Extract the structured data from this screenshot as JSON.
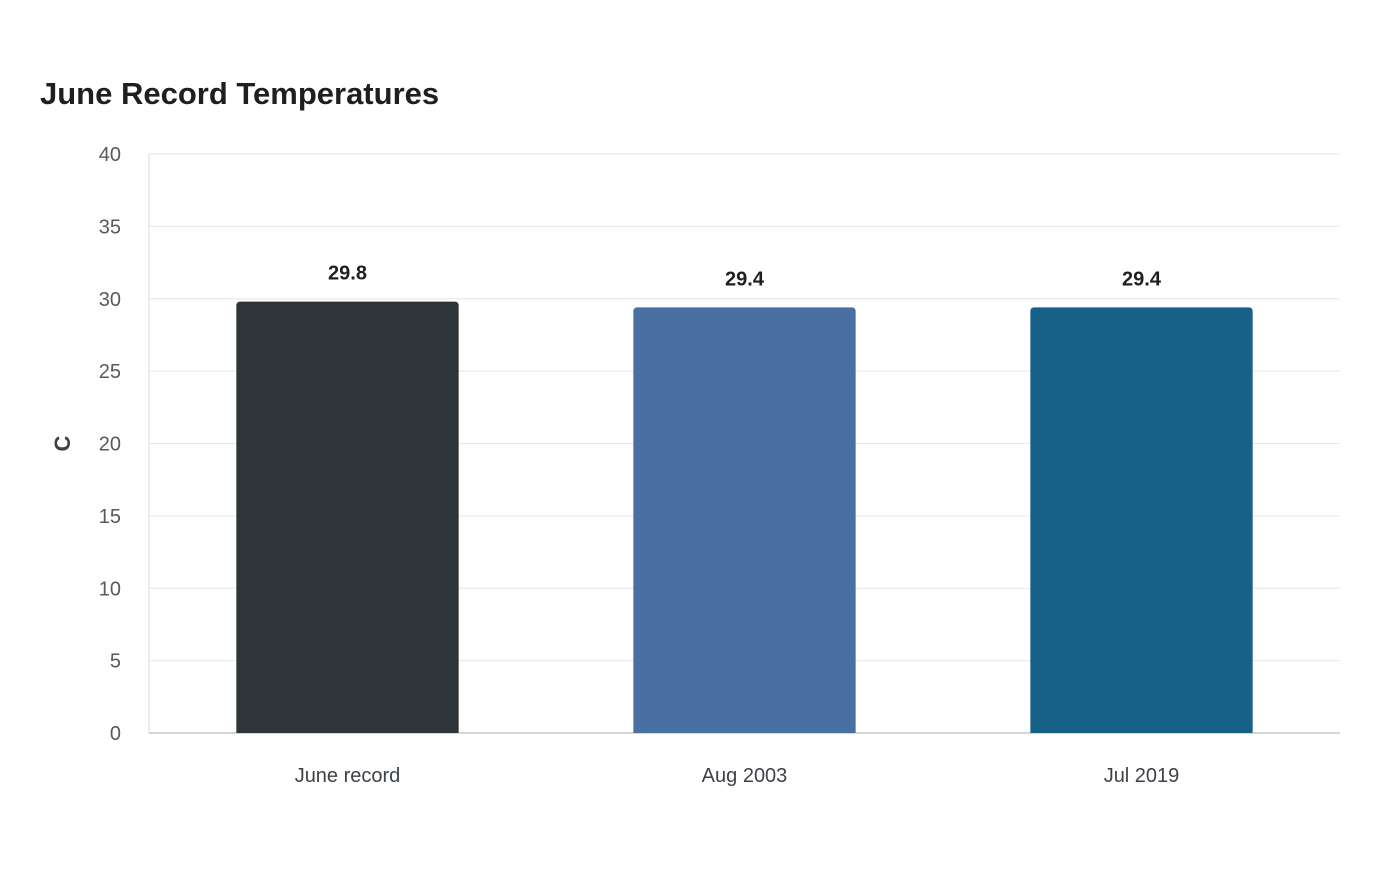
{
  "chart_data": {
    "type": "bar",
    "title": "June Record Temperatures",
    "xlabel": "",
    "ylabel": "C",
    "ylim": [
      0,
      40
    ],
    "yticks": [
      "0",
      "5",
      "10",
      "15",
      "20",
      "25",
      "30",
      "35",
      "40"
    ],
    "categories": [
      "June record",
      "Aug 2003",
      "Jul 2019"
    ],
    "values": [
      29.8,
      29.4,
      29.4
    ],
    "value_labels": [
      "29.8",
      "29.4",
      "29.4"
    ],
    "bar_colors": [
      "#2e3538",
      "#4a6fa3",
      "#176088"
    ],
    "grid": true,
    "legend": "none"
  }
}
